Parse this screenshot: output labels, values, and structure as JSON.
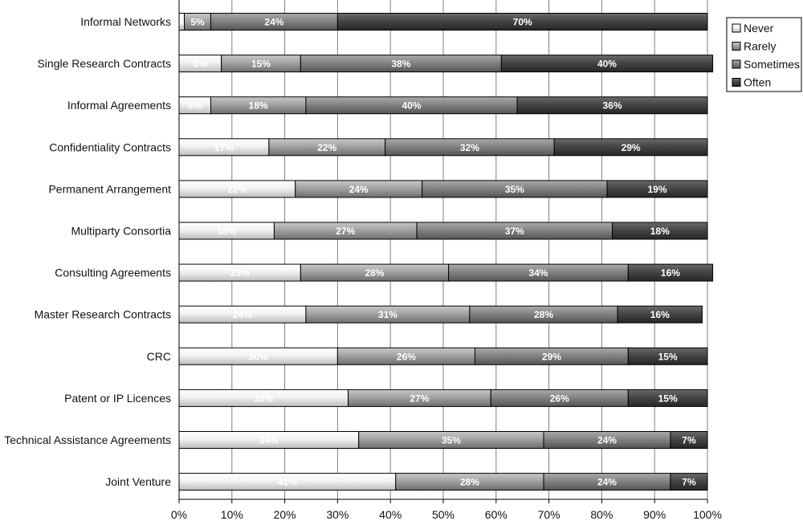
{
  "chart_data": {
    "type": "bar",
    "orientation": "horizontal",
    "stacked": true,
    "xlim": [
      0,
      100
    ],
    "x_ticks": [
      "0%",
      "10%",
      "20%",
      "30%",
      "40%",
      "50%",
      "60%",
      "70%",
      "80%",
      "90%",
      "100%"
    ],
    "grid": "vertical",
    "legend_position": "top-right",
    "categories": [
      "Informal Networks",
      "Single Research Contracts",
      "Informal Agreements",
      "Confidentiality Contracts",
      "Permanent Arrangement",
      "Multiparty Consortia",
      "Consulting Agreements",
      "Master Research Contracts",
      "CRC",
      "Patent or IP Licences",
      "Technical Assistance Agreements",
      "Joint Venture"
    ],
    "series": [
      {
        "name": "Never",
        "color": "#eeeeee",
        "values": [
          1,
          8,
          6,
          17,
          22,
          18,
          23,
          24,
          30,
          32,
          34,
          41
        ]
      },
      {
        "name": "Rarely",
        "color": "#9a9a9a",
        "values": [
          5,
          15,
          18,
          22,
          24,
          27,
          28,
          31,
          26,
          27,
          35,
          28
        ]
      },
      {
        "name": "Sometimes",
        "color": "#7c7c7c",
        "values": [
          24,
          38,
          40,
          32,
          35,
          37,
          34,
          28,
          29,
          26,
          24,
          24
        ]
      },
      {
        "name": "Often",
        "color": "#3e3e3e",
        "values": [
          70,
          40,
          36,
          29,
          19,
          18,
          16,
          16,
          15,
          15,
          7,
          7
        ]
      }
    ],
    "labels": [
      [
        "%",
        "5%",
        "24%",
        "70%"
      ],
      [
        "8%",
        "15%",
        "38%",
        "40%"
      ],
      [
        "6%",
        "18%",
        "40%",
        "36%"
      ],
      [
        "17%",
        "22%",
        "32%",
        "29%"
      ],
      [
        "22%",
        "24%",
        "35%",
        "19%"
      ],
      [
        "18%",
        "27%",
        "37%",
        "18%"
      ],
      [
        "23%",
        "28%",
        "34%",
        "16%"
      ],
      [
        "24%",
        "31%",
        "28%",
        "16%"
      ],
      [
        "30%",
        "26%",
        "29%",
        "15%"
      ],
      [
        "32%",
        "27%",
        "26%",
        "15%"
      ],
      [
        "34%",
        "35%",
        "24%",
        "7%"
      ],
      [
        "41%",
        "28%",
        "24%",
        "7%"
      ]
    ]
  }
}
